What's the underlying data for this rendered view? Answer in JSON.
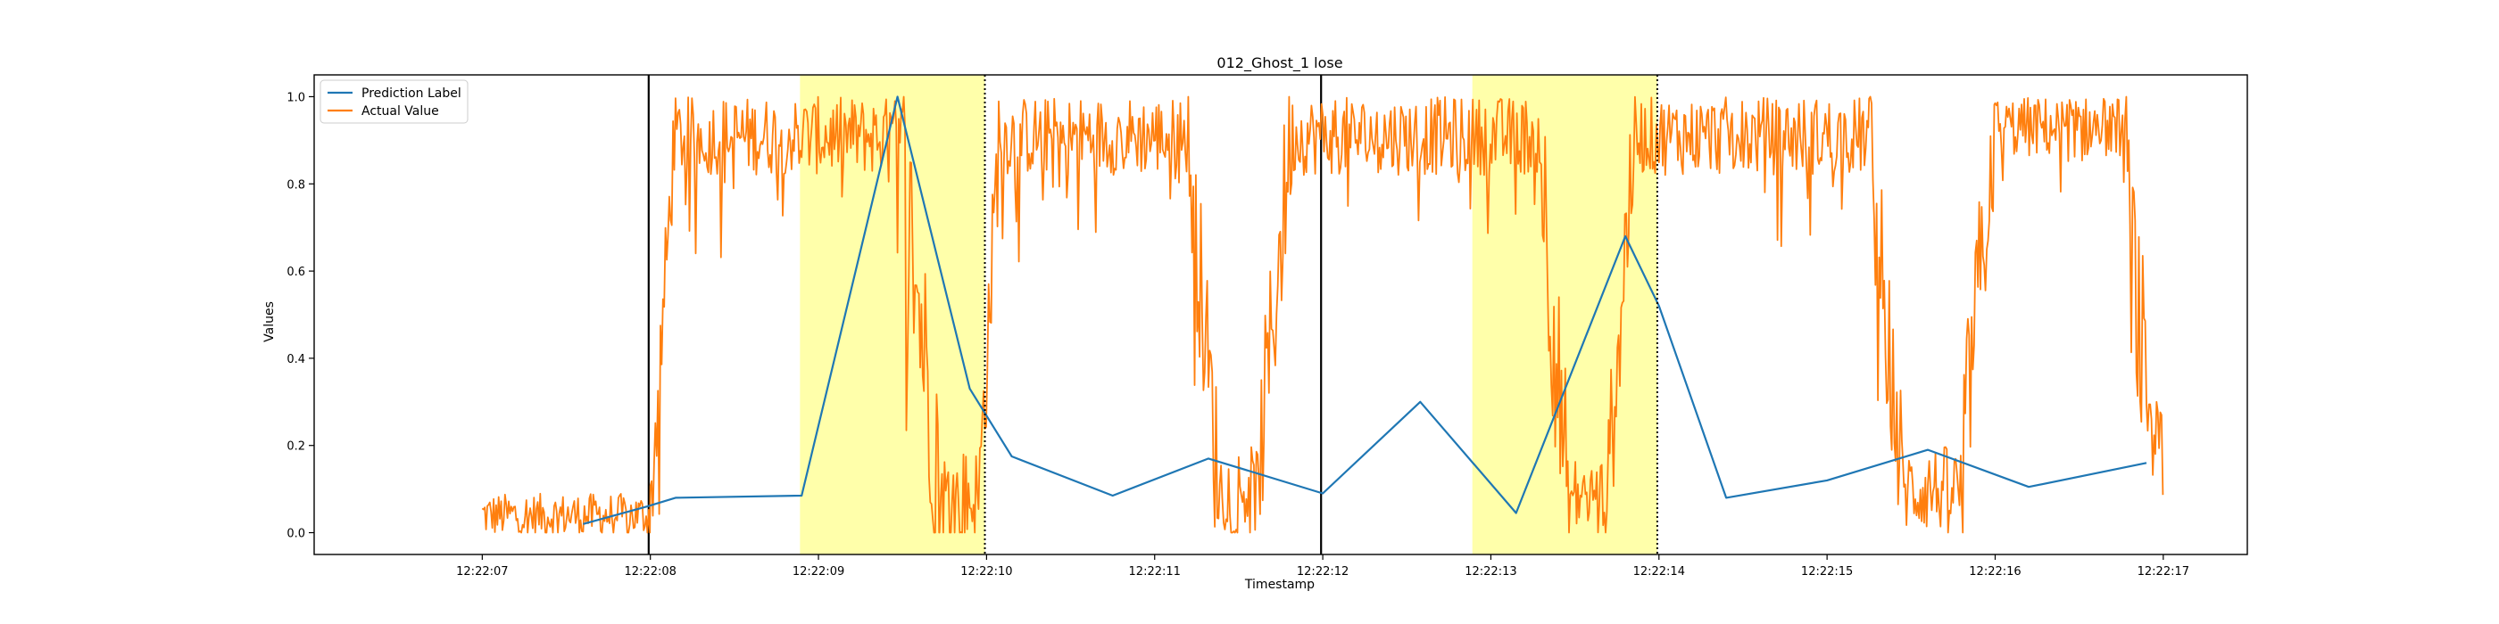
{
  "chart_data": {
    "type": "line",
    "title": "012_Ghost_1 lose",
    "xlabel": "Timestamp",
    "ylabel": "Values",
    "xlim": [
      6.0,
      17.5
    ],
    "ylim": [
      -0.05,
      1.05
    ],
    "x_ticks": [
      {
        "t": 7,
        "label": "12:22:07"
      },
      {
        "t": 8,
        "label": "12:22:08"
      },
      {
        "t": 9,
        "label": "12:22:09"
      },
      {
        "t": 10,
        "label": "12:22:10"
      },
      {
        "t": 11,
        "label": "12:22:11"
      },
      {
        "t": 12,
        "label": "12:22:12"
      },
      {
        "t": 13,
        "label": "12:22:13"
      },
      {
        "t": 14,
        "label": "12:22:14"
      },
      {
        "t": 15,
        "label": "12:22:15"
      },
      {
        "t": 16,
        "label": "12:22:16"
      },
      {
        "t": 17,
        "label": "12:22:17"
      }
    ],
    "y_ticks": [
      "0.0",
      "0.2",
      "0.4",
      "0.6",
      "0.8",
      "1.0"
    ],
    "legend": {
      "position": "top-left"
    },
    "colors": {
      "prediction": "#1f77b4",
      "actual": "#ff7f0e",
      "highlight": "#ffffaa",
      "frame": "#000000"
    },
    "highlight_spans": [
      {
        "start": 8.89,
        "end": 9.99
      },
      {
        "start": 12.89,
        "end": 13.99
      }
    ],
    "solid_vlines": [
      7.99,
      11.99
    ],
    "dotted_vlines": [
      9.99,
      13.99
    ],
    "series": [
      {
        "name": "Prediction Label",
        "color": "#1f77b4",
        "x": [
          7.6,
          7.98,
          8.15,
          8.9,
          9.47,
          9.9,
          10.15,
          10.75,
          11.32,
          12.0,
          12.58,
          13.15,
          13.8,
          14.0,
          14.4,
          15.0,
          15.6,
          16.2,
          16.9
        ],
        "values": [
          0.02,
          0.06,
          0.08,
          0.085,
          1.0,
          0.33,
          0.175,
          0.085,
          0.17,
          0.09,
          0.3,
          0.045,
          0.68,
          0.52,
          0.08,
          0.12,
          0.19,
          0.105,
          0.16
        ]
      },
      {
        "name": "Actual Value",
        "color": "#ff7f0e",
        "segments": [
          {
            "t0": 7.0,
            "t1": 8.0,
            "base": 0.04,
            "amp": 0.05
          },
          {
            "t0": 8.0,
            "t1": 8.15,
            "base": 0.04,
            "end": 0.95,
            "amp": 0.12
          },
          {
            "t0": 8.15,
            "t1": 9.5,
            "base": 0.91,
            "amp": 0.09
          },
          {
            "t0": 9.5,
            "t1": 9.72,
            "base": 0.85,
            "end": 0.12,
            "amp": 0.25
          },
          {
            "t0": 9.72,
            "t1": 9.96,
            "base": 0.08,
            "amp": 0.12
          },
          {
            "t0": 9.96,
            "t1": 10.08,
            "base": 0.12,
            "end": 0.95,
            "amp": 0.15
          },
          {
            "t0": 10.08,
            "t1": 11.2,
            "base": 0.91,
            "amp": 0.09
          },
          {
            "t0": 11.2,
            "t1": 11.38,
            "base": 0.9,
            "end": 0.1,
            "amp": 0.2
          },
          {
            "t0": 11.38,
            "t1": 11.62,
            "base": 0.1,
            "amp": 0.1
          },
          {
            "t0": 11.62,
            "t1": 11.82,
            "base": 0.15,
            "end": 0.95,
            "amp": 0.2
          },
          {
            "t0": 11.82,
            "t1": 13.3,
            "base": 0.91,
            "amp": 0.09
          },
          {
            "t0": 13.3,
            "t1": 13.45,
            "base": 0.85,
            "end": 0.1,
            "amp": 0.25
          },
          {
            "t0": 13.45,
            "t1": 13.7,
            "base": 0.08,
            "amp": 0.1
          },
          {
            "t0": 13.7,
            "t1": 13.85,
            "base": 0.15,
            "end": 0.9,
            "amp": 0.2
          },
          {
            "t0": 13.85,
            "t1": 15.25,
            "base": 0.91,
            "amp": 0.09
          },
          {
            "t0": 15.25,
            "t1": 15.45,
            "base": 0.9,
            "end": 0.1,
            "amp": 0.2
          },
          {
            "t0": 15.45,
            "t1": 15.8,
            "base": 0.1,
            "amp": 0.1
          },
          {
            "t0": 15.8,
            "t1": 16.0,
            "base": 0.15,
            "end": 0.95,
            "amp": 0.2
          },
          {
            "t0": 16.0,
            "t1": 16.75,
            "base": 0.93,
            "amp": 0.07
          },
          {
            "t0": 16.75,
            "t1": 16.9,
            "base": 0.9,
            "end": 0.3,
            "amp": 0.25
          },
          {
            "t0": 16.9,
            "t1": 17.0,
            "base": 0.22,
            "amp": 0.08
          }
        ]
      }
    ]
  }
}
